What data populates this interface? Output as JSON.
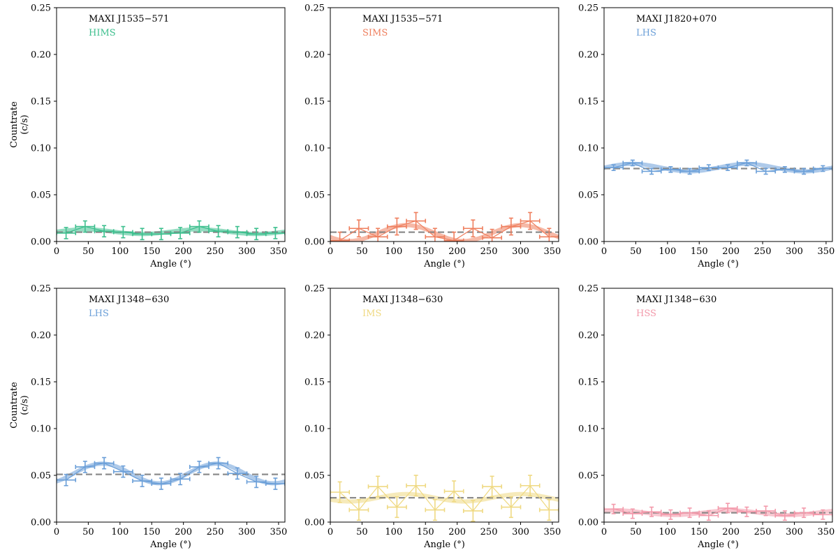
{
  "figure": {
    "ylabel_line1": "Countrate",
    "ylabel_line2": "(c/s)",
    "xlabel": "Angle (°)"
  },
  "colors": {
    "HIMS": "#3dbf8e",
    "SIMS": "#ef7f5e",
    "LHS": "#6b9fd8",
    "IMS": "#efd982",
    "HSS": "#f39aab",
    "axis": "#000000",
    "constant": "#808080"
  },
  "chart_data": [
    {
      "type": "line",
      "source": "MAXI J1535−571",
      "state": "HIMS",
      "xlabel": "Angle (°)",
      "ylabel": "Countrate (c/s)",
      "xlim": [
        0,
        360
      ],
      "ylim": [
        0,
        0.25
      ],
      "xticks": [
        0,
        50,
        100,
        150,
        200,
        250,
        300,
        350
      ],
      "yticks": [
        0.0,
        0.05,
        0.1,
        0.15,
        0.2,
        0.25
      ],
      "xtick_labels": [
        "0",
        "50",
        "100",
        "150",
        "200",
        "250",
        "300",
        "350"
      ],
      "ytick_labels": [
        "0.00",
        "0.05",
        "0.10",
        "0.15",
        "0.20",
        "0.25"
      ],
      "x": [
        15,
        45,
        75,
        105,
        135,
        165,
        195,
        225,
        255,
        285,
        315,
        345
      ],
      "y": [
        0.009,
        0.016,
        0.011,
        0.01,
        0.008,
        0.008,
        0.009,
        0.016,
        0.011,
        0.01,
        0.008,
        0.009
      ],
      "yerr": 0.006,
      "xerr": 15,
      "constant": 0.01,
      "model": {
        "c": 0.0105,
        "a": 0.0025,
        "phase_deg": 45
      }
    },
    {
      "type": "line",
      "source": "MAXI J1535−571",
      "state": "SIMS",
      "xlabel": "Angle (°)",
      "ylabel": "Countrate (c/s)",
      "xlim": [
        0,
        360
      ],
      "ylim": [
        0,
        0.25
      ],
      "xticks": [
        0,
        50,
        100,
        150,
        200,
        250,
        300,
        350
      ],
      "yticks": [
        0.0,
        0.05,
        0.1,
        0.15,
        0.2,
        0.25
      ],
      "xtick_labels": [
        "0",
        "50",
        "100",
        "150",
        "200",
        "250",
        "300",
        "350"
      ],
      "ytick_labels": [
        "0.00",
        "0.05",
        "0.10",
        "0.15",
        "0.20",
        "0.25"
      ],
      "x": [
        15,
        45,
        75,
        105,
        135,
        165,
        195,
        225,
        255,
        285,
        315,
        345
      ],
      "y": [
        0.001,
        0.014,
        0.005,
        0.016,
        0.022,
        0.005,
        0.001,
        0.014,
        0.004,
        0.016,
        0.022,
        0.005
      ],
      "yerr": 0.009,
      "xerr": 15,
      "constant": 0.01,
      "model": {
        "c": 0.009,
        "a": 0.0085,
        "phase_deg": 120
      }
    },
    {
      "type": "line",
      "source": "MAXI J1820+070",
      "state": "LHS",
      "xlabel": "Angle (°)",
      "ylabel": "Countrate (c/s)",
      "xlim": [
        0,
        360
      ],
      "ylim": [
        0,
        0.25
      ],
      "xticks": [
        0,
        50,
        100,
        150,
        200,
        250,
        300,
        350
      ],
      "yticks": [
        0.0,
        0.05,
        0.1,
        0.15,
        0.2,
        0.25
      ],
      "xtick_labels": [
        "0",
        "50",
        "100",
        "150",
        "200",
        "250",
        "300",
        "350"
      ],
      "ytick_labels": [
        "0.00",
        "0.05",
        "0.10",
        "0.15",
        "0.20",
        "0.25"
      ],
      "x": [
        15,
        45,
        75,
        105,
        135,
        165,
        195,
        225,
        255,
        285,
        315,
        345
      ],
      "y": [
        0.079,
        0.084,
        0.075,
        0.077,
        0.075,
        0.079,
        0.079,
        0.084,
        0.075,
        0.077,
        0.075,
        0.078
      ],
      "yerr": 0.003,
      "xerr": 15,
      "constant": 0.078,
      "model": {
        "c": 0.079,
        "a": 0.004,
        "phase_deg": 45
      }
    },
    {
      "type": "line",
      "source": "MAXI J1348−630",
      "state": "LHS",
      "xlabel": "Angle (°)",
      "ylabel": "Countrate (c/s)",
      "xlim": [
        0,
        360
      ],
      "ylim": [
        0,
        0.25
      ],
      "xticks": [
        0,
        50,
        100,
        150,
        200,
        250,
        300,
        350
      ],
      "yticks": [
        0.0,
        0.05,
        0.1,
        0.15,
        0.2,
        0.25
      ],
      "xtick_labels": [
        "0",
        "50",
        "100",
        "150",
        "200",
        "250",
        "300",
        "350"
      ],
      "ytick_labels": [
        "0.00",
        "0.05",
        "0.10",
        "0.15",
        "0.20",
        "0.25"
      ],
      "x": [
        15,
        45,
        75,
        105,
        135,
        165,
        195,
        225,
        255,
        285,
        315,
        345
      ],
      "y": [
        0.045,
        0.059,
        0.063,
        0.054,
        0.044,
        0.041,
        0.046,
        0.059,
        0.063,
        0.052,
        0.043,
        0.041
      ],
      "yerr": 0.006,
      "xerr": 15,
      "constant": 0.051,
      "model": {
        "c": 0.052,
        "a": 0.0105,
        "phase_deg": 72
      }
    },
    {
      "type": "line",
      "source": "MAXI J1348−630",
      "state": "IMS",
      "xlabel": "Angle (°)",
      "ylabel": "Countrate (c/s)",
      "xlim": [
        0,
        360
      ],
      "ylim": [
        0,
        0.25
      ],
      "xticks": [
        0,
        50,
        100,
        150,
        200,
        250,
        300,
        350
      ],
      "yticks": [
        0.0,
        0.05,
        0.1,
        0.15,
        0.2,
        0.25
      ],
      "xtick_labels": [
        "0",
        "50",
        "100",
        "150",
        "200",
        "250",
        "300",
        "350"
      ],
      "ytick_labels": [
        "0.00",
        "0.05",
        "0.10",
        "0.15",
        "0.20",
        "0.25"
      ],
      "x": [
        15,
        45,
        75,
        105,
        135,
        165,
        195,
        225,
        255,
        285,
        315,
        345
      ],
      "y": [
        0.032,
        0.013,
        0.038,
        0.016,
        0.039,
        0.013,
        0.033,
        0.012,
        0.038,
        0.016,
        0.039,
        0.013
      ],
      "yerr": 0.011,
      "xerr": 15,
      "constant": 0.026,
      "model": {
        "c": 0.026,
        "a": 0.004,
        "phase_deg": 120
      }
    },
    {
      "type": "line",
      "source": "MAXI J1348−630",
      "state": "HSS",
      "xlabel": "Angle (°)",
      "ylabel": "Countrate (c/s)",
      "xlim": [
        0,
        360
      ],
      "ylim": [
        0,
        0.25
      ],
      "xticks": [
        0,
        50,
        100,
        150,
        200,
        250,
        300,
        350
      ],
      "yticks": [
        0.0,
        0.05,
        0.1,
        0.15,
        0.2,
        0.25
      ],
      "xtick_labels": [
        "0",
        "50",
        "100",
        "150",
        "200",
        "250",
        "300",
        "350"
      ],
      "ytick_labels": [
        "0.00",
        "0.05",
        "0.10",
        "0.15",
        "0.20",
        "0.25"
      ],
      "x": [
        15,
        45,
        75,
        105,
        135,
        165,
        195,
        225,
        255,
        285,
        315,
        345
      ],
      "y": [
        0.014,
        0.009,
        0.011,
        0.008,
        0.01,
        0.007,
        0.015,
        0.011,
        0.012,
        0.007,
        0.01,
        0.008
      ],
      "yerr": 0.005,
      "xerr": 15,
      "constant": 0.01,
      "model": {
        "c": 0.01,
        "a": 0.0025,
        "phase_deg": 20
      }
    }
  ]
}
